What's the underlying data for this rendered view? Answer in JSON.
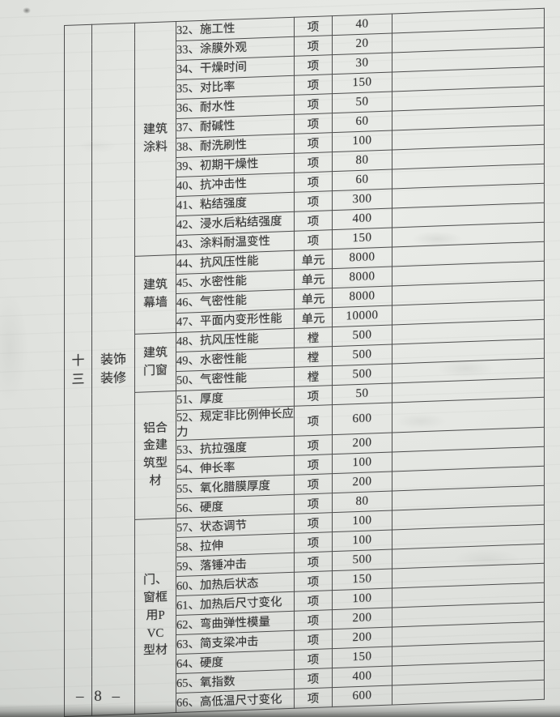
{
  "colors": {
    "paper": "#e4e6e2",
    "ink": "#343434",
    "table_line": "#4d4d4d"
  },
  "footer": {
    "page_number": "– 8 –"
  },
  "table": {
    "section_number": "十三",
    "section_name": "装饰装修",
    "groups": [
      {
        "category": "建筑涂料",
        "items": [
          {
            "item": "32、施工性",
            "unit": "项",
            "price": 40
          },
          {
            "item": "33、涂膜外观",
            "unit": "项",
            "price": 20
          },
          {
            "item": "34、干燥时间",
            "unit": "项",
            "price": 30
          },
          {
            "item": "35、对比率",
            "unit": "项",
            "price": 150
          },
          {
            "item": "36、耐水性",
            "unit": "项",
            "price": 50
          },
          {
            "item": "37、耐碱性",
            "unit": "项",
            "price": 60
          },
          {
            "item": "38、耐洗刷性",
            "unit": "项",
            "price": 100
          },
          {
            "item": "39、初期干燥性",
            "unit": "项",
            "price": 80
          },
          {
            "item": "40、抗冲击性",
            "unit": "项",
            "price": 60
          },
          {
            "item": "41、粘结强度",
            "unit": "项",
            "price": 300
          },
          {
            "item": "42、浸水后粘结强度",
            "unit": "项",
            "price": 400
          },
          {
            "item": "43、涂料耐温变性",
            "unit": "项",
            "price": 150
          }
        ]
      },
      {
        "category": "建筑幕墙",
        "items": [
          {
            "item": "44、抗风压性能",
            "unit": "单元",
            "price": 8000
          },
          {
            "item": "45、水密性能",
            "unit": "单元",
            "price": 8000
          },
          {
            "item": "46、气密性能",
            "unit": "单元",
            "price": 8000
          },
          {
            "item": "47、平面内变形性能",
            "unit": "单元",
            "price": 10000
          }
        ]
      },
      {
        "category": "建筑门窗",
        "items": [
          {
            "item": "48、抗风压性能",
            "unit": "樘",
            "price": 500
          },
          {
            "item": "49、水密性能",
            "unit": "樘",
            "price": 500
          },
          {
            "item": "50、气密性能",
            "unit": "樘",
            "price": 500
          }
        ]
      },
      {
        "category": "铝合金建筑型材",
        "items": [
          {
            "item": "51、厚度",
            "unit": "项",
            "price": 50
          },
          {
            "item": "52、规定非比例伸长应力",
            "unit": "项",
            "price": 600
          },
          {
            "item": "53、抗拉强度",
            "unit": "项",
            "price": 200
          },
          {
            "item": "54、伸长率",
            "unit": "项",
            "price": 100
          },
          {
            "item": "55、氧化腊膜厚度",
            "unit": "项",
            "price": 200
          },
          {
            "item": "56、硬度",
            "unit": "项",
            "price": 80
          }
        ]
      },
      {
        "category": "门、窗框用PVC型材",
        "items": [
          {
            "item": "57、状态调节",
            "unit": "项",
            "price": 100
          },
          {
            "item": "58、拉伸",
            "unit": "项",
            "price": 100
          },
          {
            "item": "59、落锤冲击",
            "unit": "项",
            "price": 500
          },
          {
            "item": "60、加热后状态",
            "unit": "项",
            "price": 150
          },
          {
            "item": "61、加热后尺寸变化",
            "unit": "项",
            "price": 100
          },
          {
            "item": "62、弯曲弹性模量",
            "unit": "项",
            "price": 200
          },
          {
            "item": "63、简支梁冲击",
            "unit": "项",
            "price": 200
          },
          {
            "item": "64、硬度",
            "unit": "项",
            "price": 150
          },
          {
            "item": "65、氧指数",
            "unit": "项",
            "price": 400
          },
          {
            "item": "66、高低温尺寸变化",
            "unit": "项",
            "price": 600
          }
        ]
      }
    ]
  }
}
